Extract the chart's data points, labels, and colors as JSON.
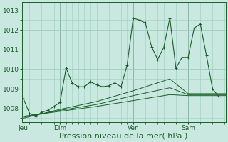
{
  "background_color": "#c8e8e0",
  "grid_color": "#a0ccbf",
  "line_color": "#1a5e28",
  "title": "Pression niveau de la mer( hPa )",
  "title_fontsize": 8,
  "ylabel_ticks": [
    1008,
    1009,
    1010,
    1011,
    1012,
    1013
  ],
  "ylim": [
    1007.3,
    1013.4
  ],
  "day_labels": [
    "Jeu",
    "Dim",
    "Ven",
    "Sam"
  ],
  "day_positions": [
    0,
    48,
    144,
    216
  ],
  "xlim": [
    -2,
    265
  ],
  "series1_x": [
    0,
    8,
    16,
    24,
    32,
    40,
    48,
    56,
    64,
    72,
    80,
    88,
    96,
    104,
    112,
    120,
    128,
    136,
    144,
    152,
    160,
    168,
    176,
    184,
    192,
    200,
    208,
    216,
    224,
    232,
    240,
    248,
    256
  ],
  "series1_y": [
    1008.5,
    1007.75,
    1007.6,
    1007.8,
    1007.9,
    1008.1,
    1008.3,
    1010.05,
    1009.3,
    1009.1,
    1009.1,
    1009.35,
    1009.2,
    1009.1,
    1009.15,
    1009.3,
    1009.1,
    1010.2,
    1012.6,
    1012.5,
    1012.35,
    1011.15,
    1010.5,
    1011.1,
    1012.6,
    1010.05,
    1010.6,
    1010.6,
    1012.1,
    1012.3,
    1010.7,
    1009.0,
    1008.6
  ],
  "series2_x": [
    0,
    48,
    96,
    144,
    192,
    216,
    265
  ],
  "series2_y": [
    1007.6,
    1007.85,
    1008.1,
    1008.4,
    1008.7,
    1008.65,
    1008.65
  ],
  "series3_x": [
    0,
    48,
    96,
    144,
    192,
    216,
    265
  ],
  "series3_y": [
    1007.55,
    1007.9,
    1008.2,
    1008.65,
    1009.05,
    1008.7,
    1008.7
  ],
  "series4_x": [
    0,
    48,
    96,
    144,
    192,
    216,
    265
  ],
  "series4_y": [
    1007.5,
    1007.95,
    1008.35,
    1008.9,
    1009.5,
    1008.75,
    1008.75
  ],
  "minor_x_step": 8
}
